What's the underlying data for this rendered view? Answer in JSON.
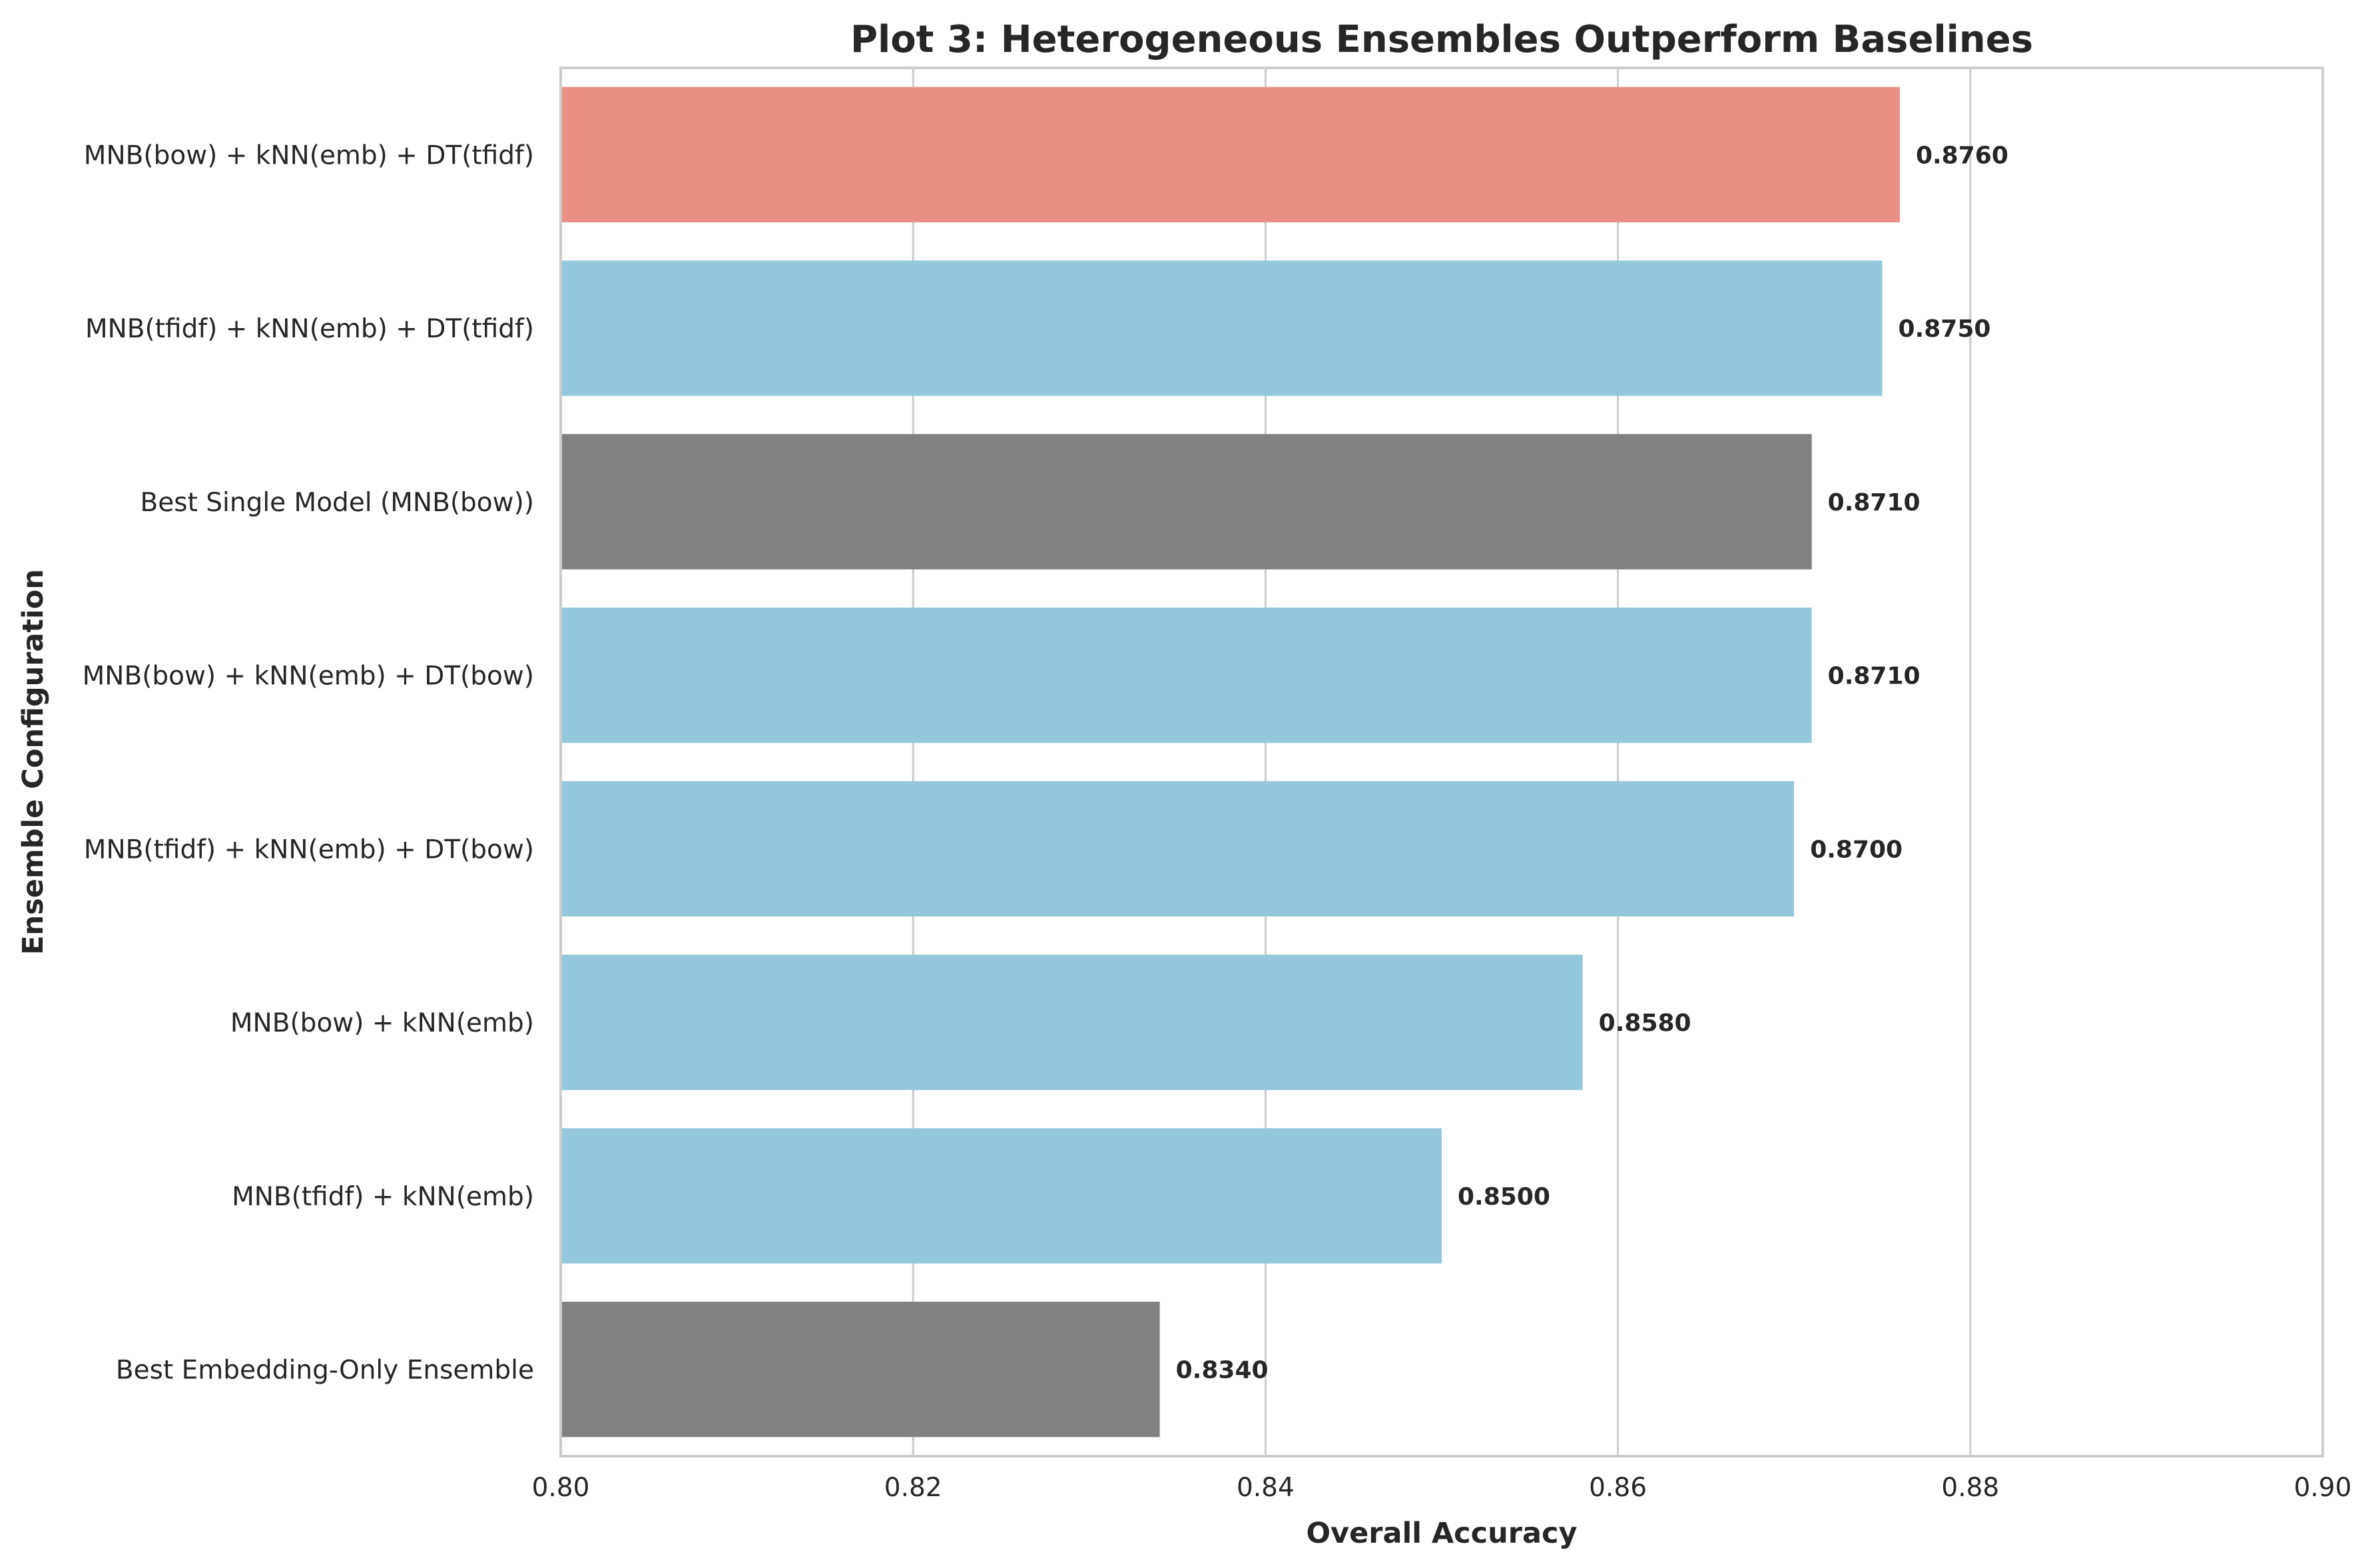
{
  "chart_data": {
    "type": "bar",
    "orientation": "horizontal",
    "title": "Plot 3: Heterogeneous Ensembles Outperform Baselines",
    "xlabel": "Overall Accuracy",
    "ylabel": "Ensemble Configuration",
    "xlim": [
      0.8,
      0.9
    ],
    "x_ticks": [
      0.8,
      0.82,
      0.84,
      0.86,
      0.88,
      0.9
    ],
    "x_tick_labels": [
      "0.80",
      "0.82",
      "0.84",
      "0.86",
      "0.88",
      "0.90"
    ],
    "grid": "vertical",
    "bars": [
      {
        "label": "MNB(bow) + kNN(emb) + DT(tfidf)",
        "value": 0.876,
        "value_label": "0.8760",
        "color": "#ea8f83"
      },
      {
        "label": "MNB(tfidf) + kNN(emb) + DT(tfidf)",
        "value": 0.875,
        "value_label": "0.8750",
        "color": "#93c8dd"
      },
      {
        "label": "Best Single Model (MNB(bow))",
        "value": 0.871,
        "value_label": "0.8710",
        "color": "#818181"
      },
      {
        "label": "MNB(bow) + kNN(emb) + DT(bow)",
        "value": 0.871,
        "value_label": "0.8710",
        "color": "#93c8dd"
      },
      {
        "label": "MNB(tfidf) + kNN(emb) + DT(bow)",
        "value": 0.87,
        "value_label": "0.8700",
        "color": "#93c8dd"
      },
      {
        "label": "MNB(bow) + kNN(emb)",
        "value": 0.858,
        "value_label": "0.8580",
        "color": "#93c8dd"
      },
      {
        "label": "MNB(tfidf) + kNN(emb)",
        "value": 0.85,
        "value_label": "0.8500",
        "color": "#93c8dd"
      },
      {
        "label": "Best Embedding-Only Ensemble",
        "value": 0.834,
        "value_label": "0.8340",
        "color": "#818181"
      }
    ]
  }
}
